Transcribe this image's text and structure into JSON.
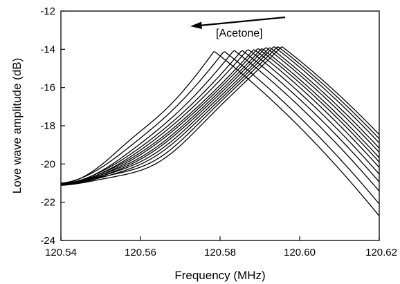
{
  "chart_data": {
    "type": "line",
    "title": "",
    "xlabel": "Frequency (MHz)",
    "ylabel": "Love wave amplitude (dB)",
    "xlim": [
      120.54,
      120.62
    ],
    "ylim": [
      -24,
      -12
    ],
    "xticks": [
      "120.54",
      "120.56",
      "120.58",
      "120.60",
      "120.62"
    ],
    "yticks": [
      "-24",
      "-22",
      "-20",
      "-18",
      "-16",
      "-14",
      "-12"
    ],
    "grid": false,
    "legend": "none",
    "line_color": "#000000",
    "annotation": {
      "text": "[Acetone]",
      "arrow_direction": "left"
    },
    "series": [
      {
        "peak_x": 120.5785,
        "peak_y": -14.1,
        "start_y": -21.05,
        "shoulder_y": -18.75
      },
      {
        "peak_x": 120.581,
        "peak_y": -14.1,
        "start_y": -21.0,
        "shoulder_y": -18.9
      },
      {
        "peak_x": 120.5835,
        "peak_y": -14.05,
        "start_y": -21.1,
        "shoulder_y": -19.0
      },
      {
        "peak_x": 120.5855,
        "peak_y": -14.05,
        "start_y": -21.05,
        "shoulder_y": -19.05
      },
      {
        "peak_x": 120.587,
        "peak_y": -14.0,
        "start_y": -21.1,
        "shoulder_y": -19.1
      },
      {
        "peak_x": 120.5885,
        "peak_y": -14.0,
        "start_y": -21.05,
        "shoulder_y": -19.15
      },
      {
        "peak_x": 120.5895,
        "peak_y": -13.95,
        "start_y": -21.1,
        "shoulder_y": -19.2
      },
      {
        "peak_x": 120.5905,
        "peak_y": -13.95,
        "start_y": -21.05,
        "shoulder_y": -19.3
      },
      {
        "peak_x": 120.5915,
        "peak_y": -13.9,
        "start_y": -21.1,
        "shoulder_y": -19.35
      },
      {
        "peak_x": 120.5925,
        "peak_y": -13.9,
        "start_y": -21.05,
        "shoulder_y": -19.45
      },
      {
        "peak_x": 120.5935,
        "peak_y": -13.85,
        "start_y": -21.1,
        "shoulder_y": -19.55
      },
      {
        "peak_x": 120.5945,
        "peak_y": -13.85,
        "start_y": -21.0,
        "shoulder_y": -19.7
      },
      {
        "peak_x": 120.5955,
        "peak_y": -13.85,
        "start_y": -21.1,
        "shoulder_y": -19.85
      }
    ]
  }
}
